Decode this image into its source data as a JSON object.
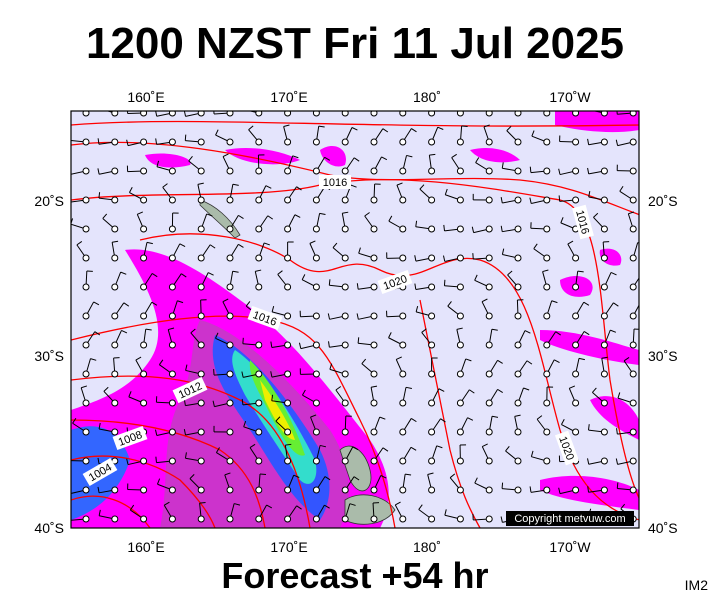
{
  "title": "1200 NZST Fri 11 Jul 2025",
  "map": {
    "lon_labels": [
      "160˚E",
      "170˚E",
      "180˚",
      "170˚W"
    ],
    "lat_labels": [
      "20˚S",
      "30˚S",
      "40˚S"
    ],
    "isobar_labels": [
      "1016",
      "1020",
      "1016",
      "1012",
      "1008",
      "1004",
      "1016",
      "1020"
    ],
    "copyright": "Copyright metvuw.com"
  },
  "footer": "Forecast +54 hr",
  "corner": "IM2"
}
